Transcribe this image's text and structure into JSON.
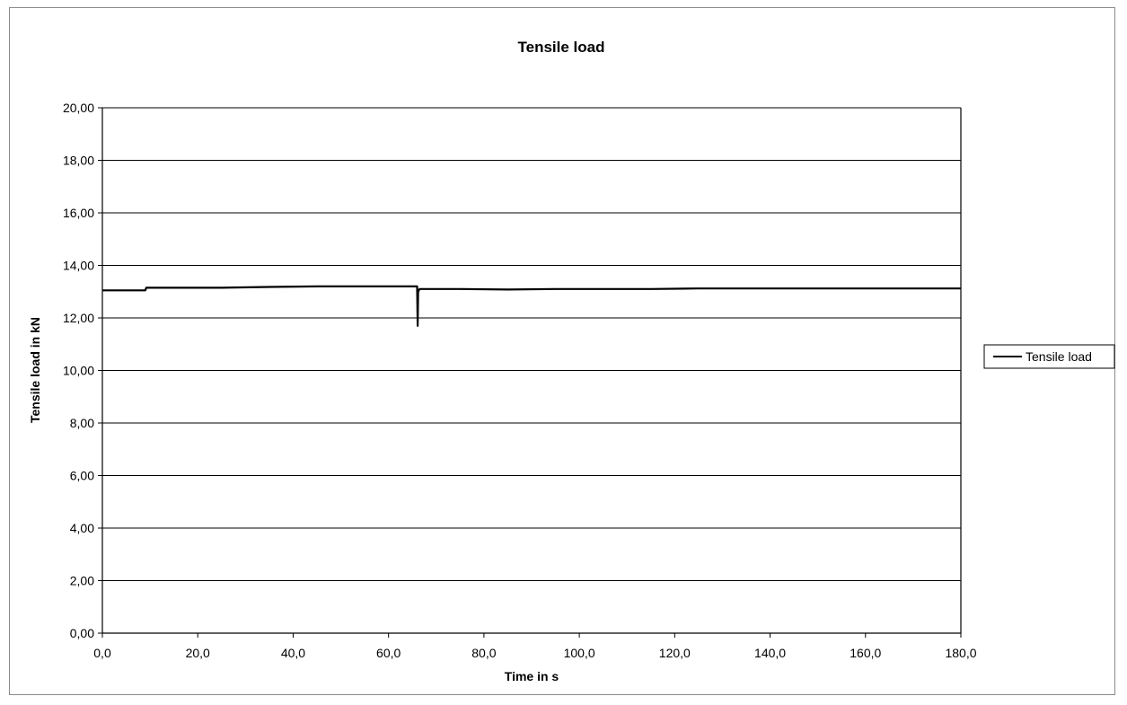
{
  "chart_data": {
    "type": "line",
    "title": "Tensile load",
    "xlabel": "Time in s",
    "ylabel": "Tensile load in kN",
    "xlim": [
      0,
      180
    ],
    "ylim": [
      0,
      20
    ],
    "x_ticks": [
      "0,0",
      "20,0",
      "40,0",
      "60,0",
      "80,0",
      "100,0",
      "120,0",
      "140,0",
      "160,0",
      "180,0"
    ],
    "y_ticks": [
      "0,00",
      "2,00",
      "4,00",
      "6,00",
      "8,00",
      "10,00",
      "12,00",
      "14,00",
      "16,00",
      "18,00",
      "20,00"
    ],
    "grid": "horizontal",
    "legend_position": "right",
    "series": [
      {
        "name": "Tensile load",
        "color": "#000000",
        "points": [
          [
            0,
            13.05
          ],
          [
            5,
            13.05
          ],
          [
            9,
            13.05
          ],
          [
            9.2,
            13.15
          ],
          [
            15,
            13.15
          ],
          [
            25,
            13.15
          ],
          [
            35,
            13.18
          ],
          [
            45,
            13.2
          ],
          [
            55,
            13.2
          ],
          [
            65,
            13.2
          ],
          [
            66,
            13.2
          ],
          [
            66.1,
            11.7
          ],
          [
            66.2,
            13.0
          ],
          [
            66.5,
            13.1
          ],
          [
            75,
            13.1
          ],
          [
            85,
            13.08
          ],
          [
            95,
            13.1
          ],
          [
            105,
            13.1
          ],
          [
            115,
            13.1
          ],
          [
            125,
            13.12
          ],
          [
            135,
            13.12
          ],
          [
            145,
            13.12
          ],
          [
            155,
            13.12
          ],
          [
            165,
            13.12
          ],
          [
            180,
            13.12
          ]
        ]
      }
    ]
  }
}
